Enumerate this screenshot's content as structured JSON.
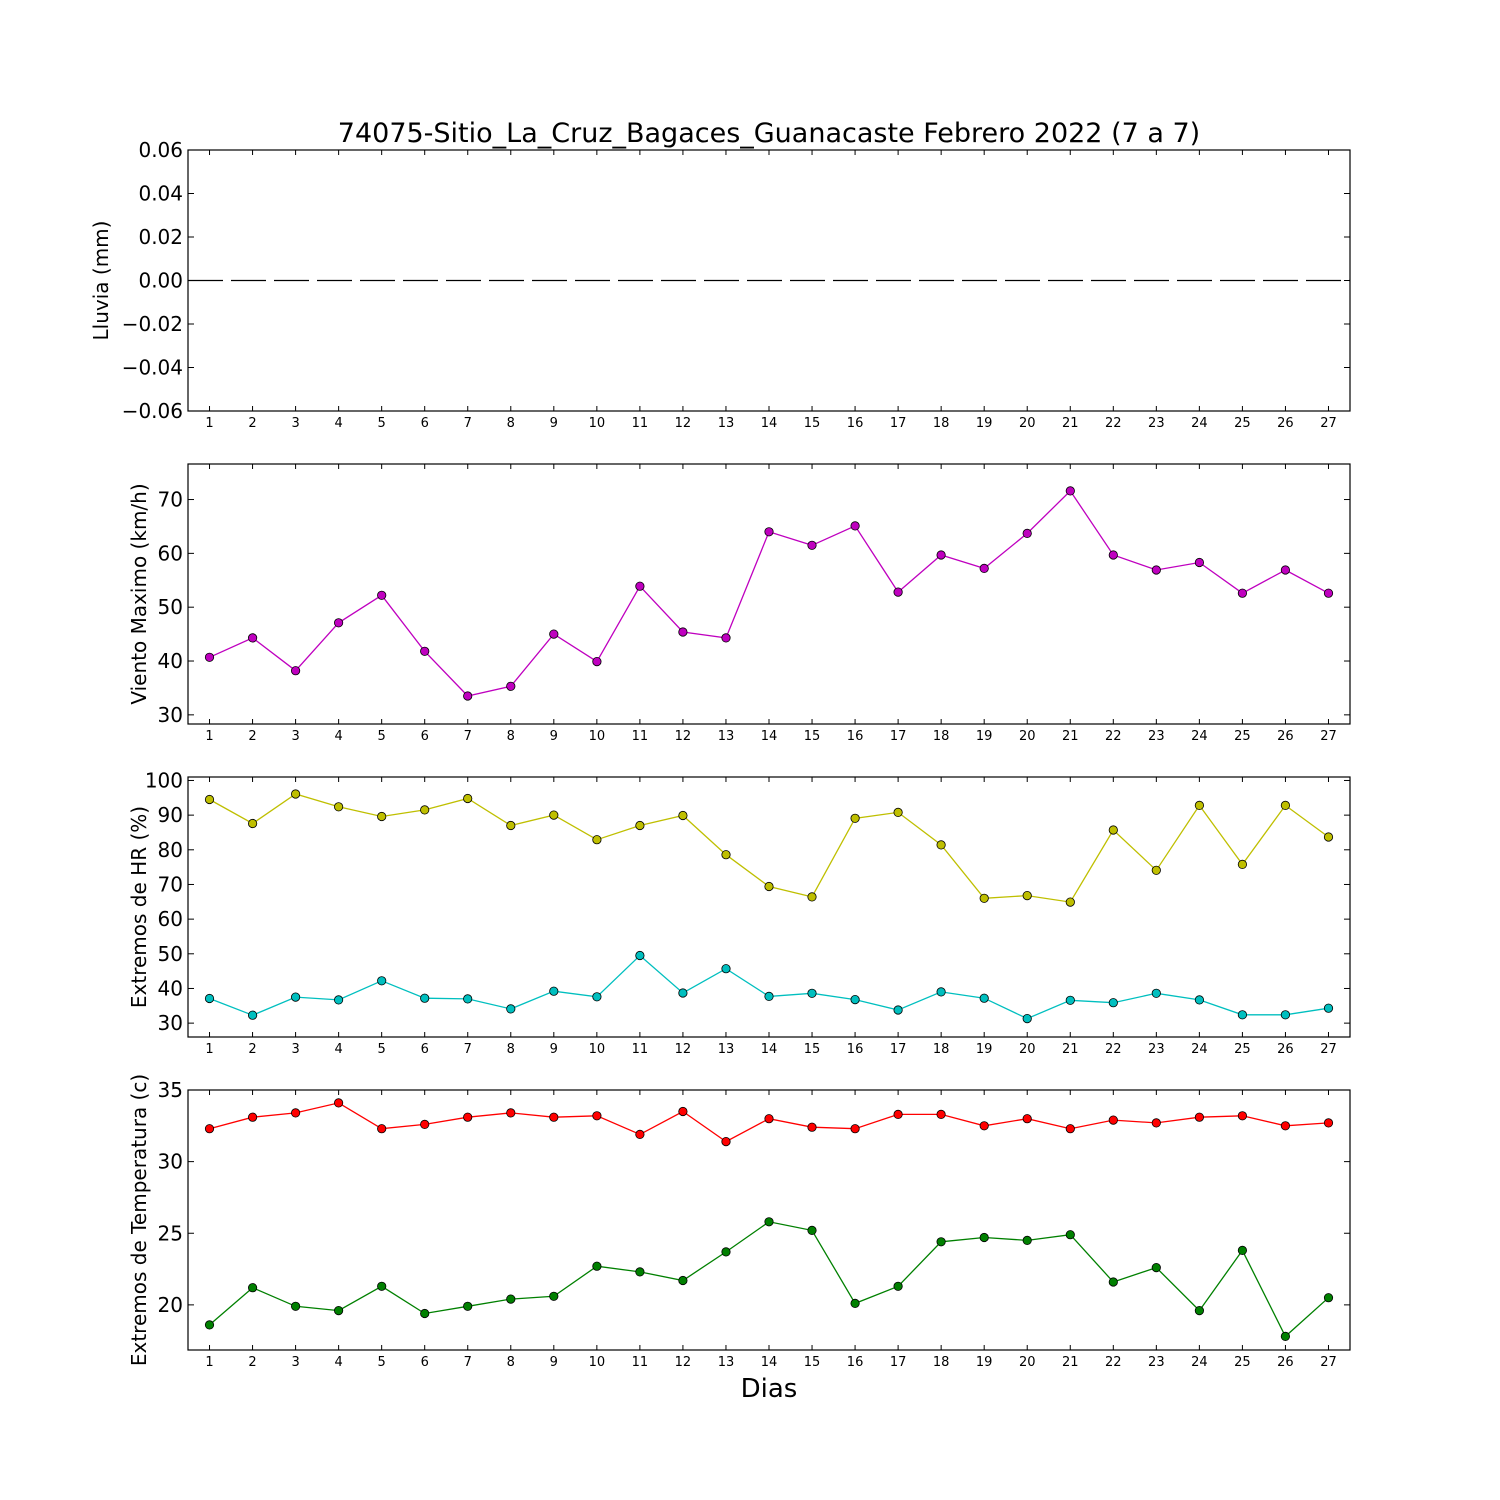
{
  "chart_data": [
    {
      "type": "line",
      "title": "74075-Sitio_La_Cruz_Bagaces_Guanacaste Febrero 2022  (7 a 7)",
      "xlabel": "",
      "ylabel": "Lluvia (mm)",
      "x": [
        1,
        2,
        3,
        4,
        5,
        6,
        7,
        8,
        9,
        10,
        11,
        12,
        13,
        14,
        15,
        16,
        17,
        18,
        19,
        20,
        21,
        22,
        23,
        24,
        25,
        26,
        27
      ],
      "ylim": [
        -0.06,
        0.06
      ],
      "yticks": [
        "0.06",
        "0.04",
        "0.02",
        "0.00",
        "−0.02",
        "−0.04",
        "−0.06"
      ],
      "ytick_values": [
        0.06,
        0.04,
        0.02,
        0.0,
        -0.02,
        -0.04,
        -0.06
      ],
      "series": [
        {
          "color": "#000000",
          "style": "dashed",
          "markers": false,
          "values": [
            0,
            0,
            0,
            0,
            0,
            0,
            0,
            0,
            0,
            0,
            0,
            0,
            0,
            0,
            0,
            0,
            0,
            0,
            0,
            0,
            0,
            0,
            0,
            0,
            0,
            0,
            0
          ]
        }
      ],
      "grid": false
    },
    {
      "type": "line",
      "title": "",
      "xlabel": "",
      "ylabel": "Viento Maximo (km/h)",
      "x": [
        1,
        2,
        3,
        4,
        5,
        6,
        7,
        8,
        9,
        10,
        11,
        12,
        13,
        14,
        15,
        16,
        17,
        18,
        19,
        20,
        21,
        22,
        23,
        24,
        25,
        26,
        27
      ],
      "ylim": [
        28.3,
        76.6
      ],
      "yticks": [
        "70",
        "60",
        "50",
        "40",
        "30"
      ],
      "ytick_values": [
        70,
        60,
        50,
        40,
        30
      ],
      "series": [
        {
          "color": "#bf00bf",
          "style": "solid",
          "markers": true,
          "values": [
            40.7,
            44.3,
            38.2,
            47.1,
            52.2,
            41.8,
            33.5,
            35.3,
            45.0,
            39.9,
            53.9,
            45.4,
            44.3,
            64.0,
            61.5,
            65.1,
            52.8,
            59.7,
            57.2,
            63.7,
            71.6,
            59.7,
            56.9,
            58.3,
            52.6,
            56.9,
            52.6
          ]
        }
      ],
      "grid": false
    },
    {
      "type": "line",
      "title": "",
      "xlabel": "",
      "ylabel": "Extremos de HR (%)",
      "x": [
        1,
        2,
        3,
        4,
        5,
        6,
        7,
        8,
        9,
        10,
        11,
        12,
        13,
        14,
        15,
        16,
        17,
        18,
        19,
        20,
        21,
        22,
        23,
        24,
        25,
        26,
        27
      ],
      "ylim": [
        26,
        101
      ],
      "yticks": [
        "100",
        "90",
        "80",
        "70",
        "60",
        "50",
        "40",
        "30"
      ],
      "ytick_values": [
        100,
        90,
        80,
        70,
        60,
        50,
        40,
        30
      ],
      "series": [
        {
          "color": "#bfbf00",
          "style": "solid",
          "markers": true,
          "values": [
            94.5,
            87.6,
            96.1,
            92.4,
            89.6,
            91.5,
            94.8,
            87.0,
            90.0,
            82.9,
            87.0,
            89.9,
            78.6,
            69.4,
            66.4,
            89.1,
            90.8,
            81.4,
            66.0,
            66.8,
            64.9,
            85.7,
            74.1,
            92.8,
            75.8,
            92.8,
            83.7
          ]
        },
        {
          "color": "#00bfbf",
          "style": "solid",
          "markers": true,
          "values": [
            37.1,
            32.3,
            37.5,
            36.7,
            42.2,
            37.2,
            37.0,
            34.1,
            39.2,
            37.6,
            49.5,
            38.7,
            45.7,
            37.7,
            38.6,
            36.8,
            33.8,
            39.0,
            37.2,
            31.3,
            36.6,
            35.9,
            38.6,
            36.7,
            32.4,
            32.4,
            34.3
          ]
        }
      ],
      "grid": false
    },
    {
      "type": "line",
      "title": "",
      "xlabel": "Dias",
      "ylabel": "Extremos de Temperatura (c)",
      "x": [
        1,
        2,
        3,
        4,
        5,
        6,
        7,
        8,
        9,
        10,
        11,
        12,
        13,
        14,
        15,
        16,
        17,
        18,
        19,
        20,
        21,
        22,
        23,
        24,
        25,
        26,
        27
      ],
      "ylim": [
        16.85,
        35.0
      ],
      "yticks": [
        "35",
        "30",
        "25",
        "20"
      ],
      "ytick_values": [
        35,
        30,
        25,
        20
      ],
      "series": [
        {
          "color": "#ff0000",
          "style": "solid",
          "markers": true,
          "values": [
            32.3,
            33.1,
            33.4,
            34.1,
            32.3,
            32.6,
            33.1,
            33.4,
            33.1,
            33.2,
            31.9,
            33.5,
            31.4,
            33.0,
            32.4,
            32.3,
            33.3,
            33.3,
            32.5,
            33.0,
            32.3,
            32.9,
            32.7,
            33.1,
            33.2,
            32.5,
            32.7
          ]
        },
        {
          "color": "#008000",
          "style": "solid",
          "markers": true,
          "values": [
            18.6,
            21.2,
            19.9,
            19.6,
            21.3,
            19.4,
            19.9,
            20.4,
            20.6,
            22.7,
            22.3,
            21.7,
            23.7,
            25.8,
            25.2,
            20.1,
            21.3,
            24.4,
            24.7,
            24.5,
            24.9,
            21.6,
            22.6,
            19.6,
            23.8,
            17.8,
            20.5
          ]
        }
      ],
      "grid": false
    }
  ]
}
